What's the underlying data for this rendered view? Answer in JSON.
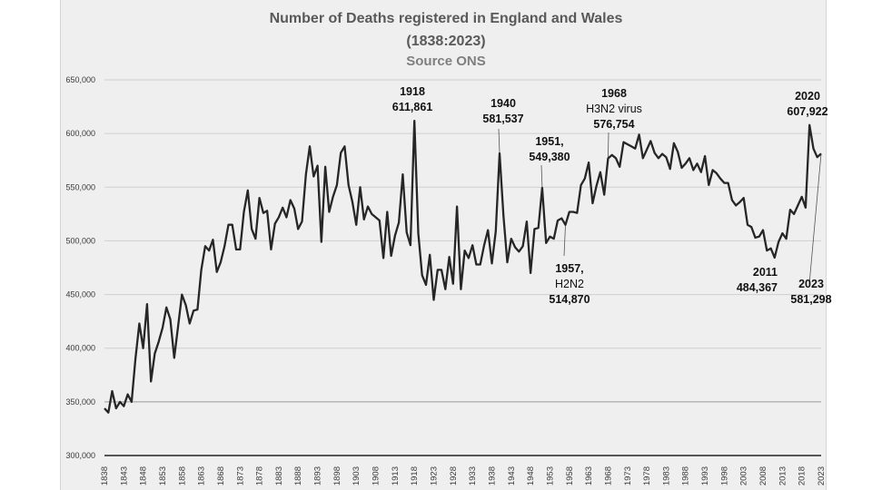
{
  "chart_data": {
    "type": "line",
    "title": "Number of Deaths registered in England and Wales",
    "subtitle": "(1838:2023)",
    "source": "Source ONS",
    "ylim": [
      300000,
      650000
    ],
    "y_ticks": [
      "300,000",
      "350,000",
      "400,000",
      "450,000",
      "500,000",
      "550,000",
      "600,000",
      "650,000"
    ],
    "x_ticks": [
      1838,
      1843,
      1848,
      1853,
      1858,
      1863,
      1868,
      1873,
      1878,
      1883,
      1888,
      1893,
      1898,
      1903,
      1908,
      1913,
      1918,
      1923,
      1928,
      1933,
      1938,
      1943,
      1948,
      1953,
      1958,
      1963,
      1968,
      1973,
      1978,
      1983,
      1988,
      1993,
      1998,
      2003,
      2008,
      2013,
      2018,
      2023
    ],
    "grid": true,
    "series": [
      {
        "x_start": 1838,
        "x_end": 2023,
        "color": "#262626",
        "values": [
          344000,
          340000,
          360000,
          344000,
          350000,
          346000,
          357000,
          350000,
          390000,
          423000,
          400000,
          441000,
          369000,
          395000,
          406000,
          419000,
          438000,
          427000,
          391000,
          420000,
          450000,
          440000,
          423000,
          435000,
          436000,
          473000,
          495000,
          491000,
          501000,
          471000,
          480000,
          495000,
          515000,
          515000,
          492000,
          492000,
          527000,
          547000,
          511000,
          502000,
          540000,
          526000,
          528000,
          492000,
          516000,
          522000,
          531000,
          522000,
          538000,
          530000,
          511000,
          518000,
          562000,
          588000,
          560000,
          570000,
          499000,
          569000,
          527000,
          541000,
          552000,
          582000,
          588000,
          552000,
          536000,
          515000,
          550000,
          520000,
          532000,
          525000,
          522000,
          519000,
          484000,
          527000,
          486000,
          505000,
          517000,
          562000,
          508000,
          496000,
          611861,
          507000,
          468000,
          459000,
          487000,
          445000,
          473000,
          473000,
          455000,
          485000,
          460000,
          532000,
          455000,
          491000,
          484000,
          496000,
          478000,
          478000,
          496000,
          510000,
          479000,
          509000,
          581537,
          523000,
          480000,
          502000,
          494000,
          490000,
          495000,
          518000,
          470000,
          511000,
          512000,
          549380,
          498000,
          504000,
          502000,
          519000,
          521000,
          514870,
          527000,
          527000,
          526000,
          552000,
          558000,
          573000,
          535000,
          551000,
          564000,
          543000,
          576754,
          580000,
          577000,
          569000,
          592000,
          590000,
          588000,
          586000,
          599000,
          577000,
          585000,
          593000,
          582000,
          577000,
          581000,
          578000,
          567000,
          591000,
          583000,
          568000,
          572000,
          577000,
          566000,
          572000,
          564000,
          579000,
          552000,
          566000,
          563000,
          558000,
          554000,
          554000,
          538000,
          533000,
          536000,
          540000,
          515000,
          513000,
          503000,
          504000,
          510000,
          491000,
          493000,
          484367,
          499000,
          507000,
          502000,
          529000,
          525000,
          533000,
          541000,
          531000,
          607922,
          586000,
          578000,
          581298
        ]
      }
    ],
    "annotations": [
      {
        "lines": [
          "1918",
          "611,861"
        ],
        "x": 1918,
        "y": 611861
      },
      {
        "lines": [
          "1940",
          "581,537"
        ],
        "x": 1940,
        "y": 581537
      },
      {
        "lines": [
          "1951,",
          "549,380"
        ],
        "x": 1951,
        "y": 549380
      },
      {
        "lines": [
          "1957,",
          "H2N2",
          "514,870"
        ],
        "x": 1957,
        "y": 514870
      },
      {
        "lines": [
          "1968",
          "H3N2 virus",
          "576,754"
        ],
        "x": 1968,
        "y": 576754
      },
      {
        "lines": [
          "2011",
          "484,367"
        ],
        "x": 2011,
        "y": 484367
      },
      {
        "lines": [
          "2020",
          "607,922"
        ],
        "x": 2020,
        "y": 607922
      },
      {
        "lines": [
          "2023",
          "581,298"
        ],
        "x": 2023,
        "y": 581298
      }
    ]
  }
}
